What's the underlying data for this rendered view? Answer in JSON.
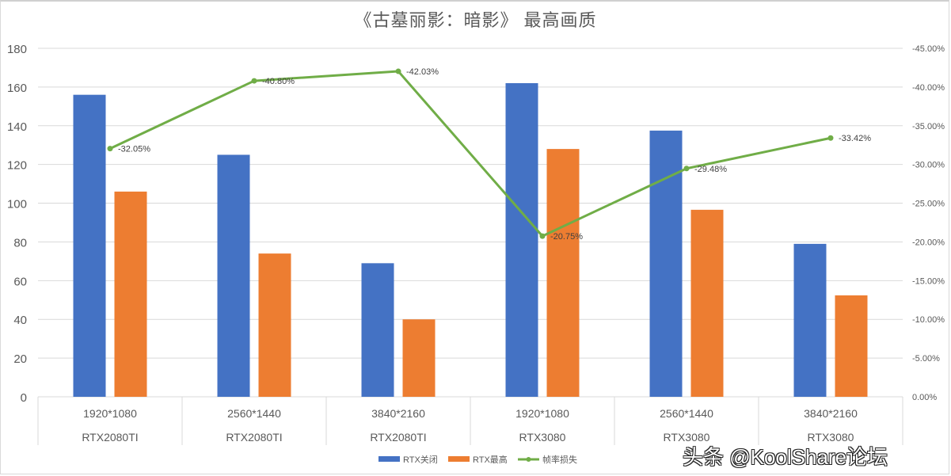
{
  "chart_data": {
    "type": "bar",
    "title": "《古墓丽影：暗影》 最高画质",
    "categories": [
      {
        "resolution": "1920*1080",
        "gpu": "RTX2080TI"
      },
      {
        "resolution": "2560*1440",
        "gpu": "RTX2080TI"
      },
      {
        "resolution": "3840*2160",
        "gpu": "RTX2080TI"
      },
      {
        "resolution": "1920*1080",
        "gpu": "RTX3080"
      },
      {
        "resolution": "2560*1440",
        "gpu": "RTX3080"
      },
      {
        "resolution": "3840*2160",
        "gpu": "RTX3080"
      }
    ],
    "series": [
      {
        "name": "RTX关闭",
        "type": "bar",
        "axis": "left",
        "color": "#4472c4",
        "values": [
          156,
          125,
          69,
          162,
          137.5,
          79
        ]
      },
      {
        "name": "RTX最高",
        "type": "bar",
        "axis": "left",
        "color": "#ed7d31",
        "values": [
          106,
          74,
          40,
          128,
          96.6,
          52.4
        ]
      },
      {
        "name": "帧率损失",
        "type": "line",
        "axis": "right",
        "color": "#70ad47",
        "values": [
          -32.05,
          -40.8,
          -42.03,
          -20.75,
          -29.48,
          -33.42
        ],
        "labels": [
          "-32.05%",
          "-40.80%",
          "-42.03%",
          "-20.75%",
          "-29.48%",
          "-33.42%"
        ]
      }
    ],
    "left_axis": {
      "min": 0,
      "max": 180,
      "step": 20,
      "ticks": [
        "0",
        "20",
        "40",
        "60",
        "80",
        "100",
        "120",
        "140",
        "160",
        "180"
      ]
    },
    "right_axis": {
      "min": 0,
      "max": -45,
      "step": -5,
      "ticks": [
        "0.00%",
        "-5.00%",
        "-10.00%",
        "-15.00%",
        "-20.00%",
        "-25.00%",
        "-30.00%",
        "-35.00%",
        "-40.00%",
        "-45.00%"
      ]
    },
    "xlabel": "",
    "ylabel": "",
    "grid": true,
    "legend_position": "bottom"
  },
  "watermark": "头条 @KoolShare论坛"
}
